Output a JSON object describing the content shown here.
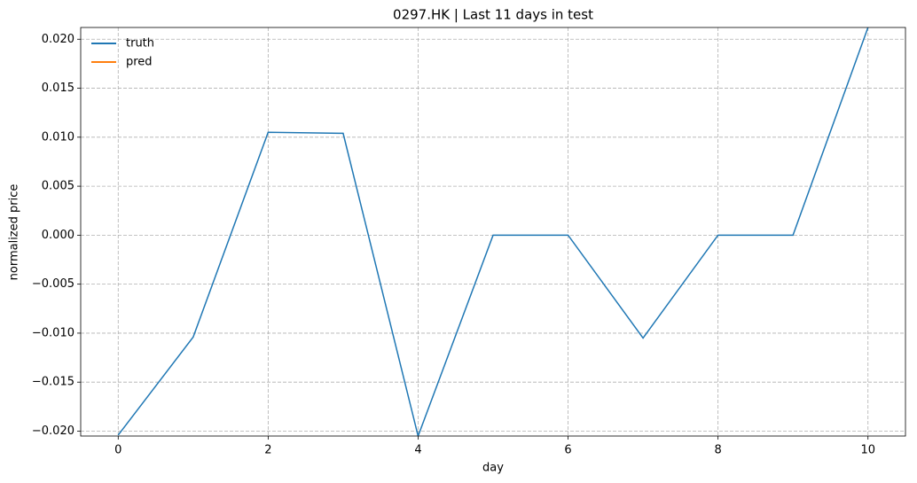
{
  "chart_data": {
    "type": "line",
    "title": "0297.HK | Last 11 days in test",
    "x_label": "day",
    "y_label": "normalized price",
    "x": [
      0,
      1,
      2,
      3,
      4,
      5,
      6,
      7,
      8,
      9,
      10
    ],
    "series": [
      {
        "name": "truth",
        "color": "#1f77b4",
        "values": [
          -0.0204,
          -0.0104,
          0.0105,
          0.0104,
          -0.0205,
          0,
          0,
          -0.0105,
          0,
          0,
          0.0212
        ]
      },
      {
        "name": "pred",
        "color": "#ff7f0e",
        "values": [
          null,
          null,
          null,
          null,
          null,
          null,
          null,
          null,
          null,
          null,
          null
        ]
      }
    ],
    "xlim": [
      -0.5,
      10.5
    ],
    "xticks": [
      0,
      2,
      4,
      6,
      8,
      10
    ],
    "ylim": [
      -0.0205,
      0.0212
    ],
    "yticks": [
      {
        "value": -0.02,
        "label": "−0.020"
      },
      {
        "value": -0.015,
        "label": "−0.015"
      },
      {
        "value": -0.01,
        "label": "−0.010"
      },
      {
        "value": -0.005,
        "label": "−0.005"
      },
      {
        "value": 0,
        "label": "0.000"
      },
      {
        "value": 0.005,
        "label": "0.005"
      },
      {
        "value": 0.01,
        "label": "0.010"
      },
      {
        "value": 0.015,
        "label": "0.015"
      },
      {
        "value": 0.02,
        "label": "0.020"
      }
    ],
    "grid": true,
    "legend": "upper-left"
  }
}
